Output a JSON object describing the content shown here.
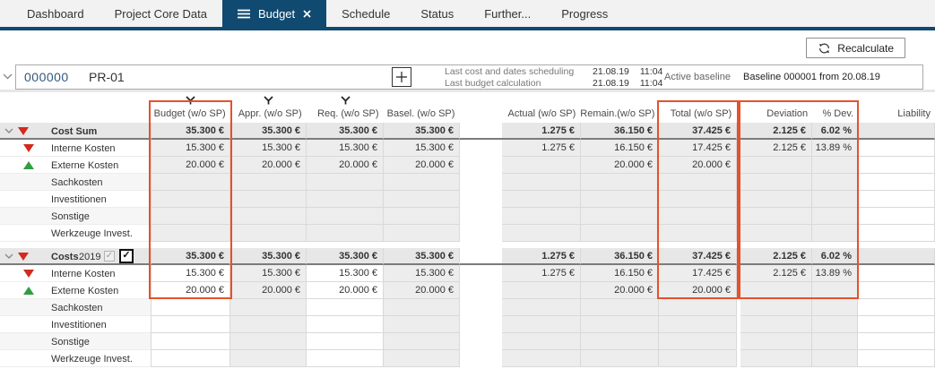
{
  "tabs": {
    "items": [
      {
        "label": "Dashboard",
        "active": false
      },
      {
        "label": "Project Core Data",
        "active": false
      },
      {
        "label": "Budget",
        "active": true
      },
      {
        "label": "Schedule",
        "active": false
      },
      {
        "label": "Status",
        "active": false
      },
      {
        "label": "Further...",
        "active": false
      },
      {
        "label": "Progress",
        "active": false
      }
    ]
  },
  "toolbar": {
    "recalculate_label": "Recalculate"
  },
  "project_header": {
    "number": "000000",
    "name": "PR-01",
    "info": [
      {
        "label": "Last cost and dates scheduling",
        "date": "21.08.19",
        "time": "11:04"
      },
      {
        "label": "Last budget calculation",
        "date": "21.08.19",
        "time": "11:04"
      }
    ],
    "active_baseline_label": "Active baseline",
    "active_baseline_value": "Baseline 000001 from 20.08.19"
  },
  "grid": {
    "columns": [
      {
        "key": "budget",
        "label": "Budget (w/o SP)",
        "filter": true
      },
      {
        "key": "appr",
        "label": "Appr. (w/o SP)",
        "filter": true
      },
      {
        "key": "req",
        "label": "Req. (w/o SP)",
        "filter": true
      },
      {
        "key": "basel",
        "label": "Basel. (w/o SP)",
        "filter": false
      },
      {
        "key": "actual",
        "label": "Actual (w/o SP)",
        "filter": false
      },
      {
        "key": "remain",
        "label": "Remain.(w/o SP)",
        "filter": false
      },
      {
        "key": "total",
        "label": "Total (w/o SP)",
        "filter": false
      },
      {
        "key": "deviation",
        "label": "Deviation",
        "filter": false
      },
      {
        "key": "pct_dev",
        "label": "% Dev.",
        "filter": false
      },
      {
        "key": "liability",
        "label": "Liability",
        "filter": false
      }
    ],
    "sections": [
      {
        "editable": false,
        "rows": [
          {
            "label": "Cost Sum",
            "type": "group",
            "icon": "red-down",
            "values": [
              "35.300 €",
              "35.300 €",
              "35.300 €",
              "35.300 €",
              "1.275 €",
              "36.150 €",
              "37.425 €",
              "2.125 €",
              "6.02 %",
              ""
            ]
          },
          {
            "label": "Interne Kosten",
            "type": "sub",
            "icon": "red-down",
            "values": [
              "15.300 €",
              "15.300 €",
              "15.300 €",
              "15.300 €",
              "1.275 €",
              "16.150 €",
              "17.425 €",
              "2.125 €",
              "13.89 %",
              ""
            ]
          },
          {
            "label": "Externe Kosten",
            "type": "sub",
            "icon": "green-up",
            "values": [
              "20.000 €",
              "20.000 €",
              "20.000 €",
              "20.000 €",
              "",
              "20.000 €",
              "20.000 €",
              "",
              "",
              ""
            ]
          },
          {
            "label": "Sachkosten",
            "type": "sub",
            "shade": true,
            "values": [
              "",
              "",
              "",
              "",
              "",
              "",
              "",
              "",
              "",
              ""
            ]
          },
          {
            "label": "Investitionen",
            "type": "sub",
            "values": [
              "",
              "",
              "",
              "",
              "",
              "",
              "",
              "",
              "",
              ""
            ]
          },
          {
            "label": "Sonstige",
            "type": "sub",
            "shade": true,
            "values": [
              "",
              "",
              "",
              "",
              "",
              "",
              "",
              "",
              "",
              ""
            ]
          },
          {
            "label": "Werkzeuge Invest.",
            "type": "sub",
            "values": [
              "",
              "",
              "",
              "",
              "",
              "",
              "",
              "",
              "",
              ""
            ]
          }
        ]
      },
      {
        "editable": true,
        "rows": [
          {
            "label": "Costs",
            "type": "group",
            "icon": "red-down",
            "year": "2019",
            "year_checkbox_readonly": true,
            "year_checkbox": true,
            "values": [
              "35.300 €",
              "35.300 €",
              "35.300 €",
              "35.300 €",
              "1.275 €",
              "36.150 €",
              "37.425 €",
              "2.125 €",
              "6.02 %",
              ""
            ]
          },
          {
            "label": "Interne Kosten",
            "type": "sub",
            "icon": "red-down",
            "values": [
              "15.300 €",
              "15.300 €",
              "15.300 €",
              "15.300 €",
              "1.275 €",
              "16.150 €",
              "17.425 €",
              "2.125 €",
              "13.89 %",
              ""
            ]
          },
          {
            "label": "Externe Kosten",
            "type": "sub",
            "icon": "green-up",
            "values": [
              "20.000 €",
              "20.000 €",
              "20.000 €",
              "20.000 €",
              "",
              "20.000 €",
              "20.000 €",
              "",
              "",
              ""
            ]
          },
          {
            "label": "Sachkosten",
            "type": "sub",
            "shade": true,
            "values": [
              "",
              "",
              "",
              "",
              "",
              "",
              "",
              "",
              "",
              ""
            ]
          },
          {
            "label": "Investitionen",
            "type": "sub",
            "values": [
              "",
              "",
              "",
              "",
              "",
              "",
              "",
              "",
              "",
              ""
            ]
          },
          {
            "label": "Sonstige",
            "type": "sub",
            "shade": true,
            "values": [
              "",
              "",
              "",
              "",
              "",
              "",
              "",
              "",
              "",
              ""
            ]
          },
          {
            "label": "Werkzeuge Invest.",
            "type": "sub",
            "values": [
              "",
              "",
              "",
              "",
              "",
              "",
              "",
              "",
              "",
              ""
            ]
          }
        ]
      }
    ],
    "highlight_boxes": [
      "Budget (w/o SP)",
      "Total (w/o SP)",
      "Deviation + % Dev."
    ]
  },
  "colors": {
    "tab_active_bg": "#114a70",
    "highlight_box": "#e5512b",
    "negative_icon": "#d22a1c",
    "positive_icon": "#2f9e41"
  }
}
